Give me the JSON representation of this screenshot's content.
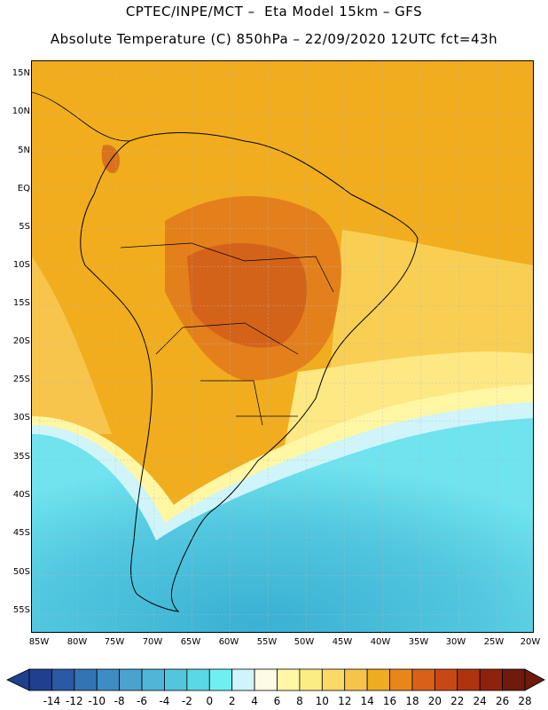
{
  "header": {
    "line1": "CPTEC/INPE/MCT –  Eta Model 15km – GFS",
    "line2": "Absolute Temperature (C) 850hPa – 22/09/2020 12UTC fct=43h"
  },
  "map": {
    "variable": "Absolute Temperature (C) 850hPa",
    "lat_labels": [
      "15N",
      "10N",
      "5N",
      "EQ",
      "5S",
      "10S",
      "15S",
      "20S",
      "25S",
      "30S",
      "35S",
      "40S",
      "45S",
      "50S",
      "55S"
    ],
    "lon_labels": [
      "85W",
      "80W",
      "75W",
      "70W",
      "65W",
      "60W",
      "55W",
      "50W",
      "45W",
      "40W",
      "35W",
      "30W",
      "25W",
      "20W"
    ]
  },
  "colorbar": {
    "labels": [
      "-14",
      "-12",
      "-10",
      "-8",
      "-6",
      "-4",
      "-2",
      "0",
      "2",
      "4",
      "6",
      "8",
      "10",
      "12",
      "14",
      "16",
      "18",
      "20",
      "22",
      "24",
      "26",
      "28"
    ],
    "colors": [
      "#1f3f8f",
      "#2a5aa6",
      "#3374b5",
      "#3d8dc4",
      "#4aa2cf",
      "#4fb6d8",
      "#52c6dd",
      "#5ad8e6",
      "#6ef0f0",
      "#cff4fa",
      "#fffbe3",
      "#fff7a4",
      "#fcec84",
      "#fbd966",
      "#f6c44b",
      "#f0ac20",
      "#e8861b",
      "#d8611a",
      "#c84815",
      "#b0330f",
      "#8f220d",
      "#6e1a0c"
    ]
  }
}
